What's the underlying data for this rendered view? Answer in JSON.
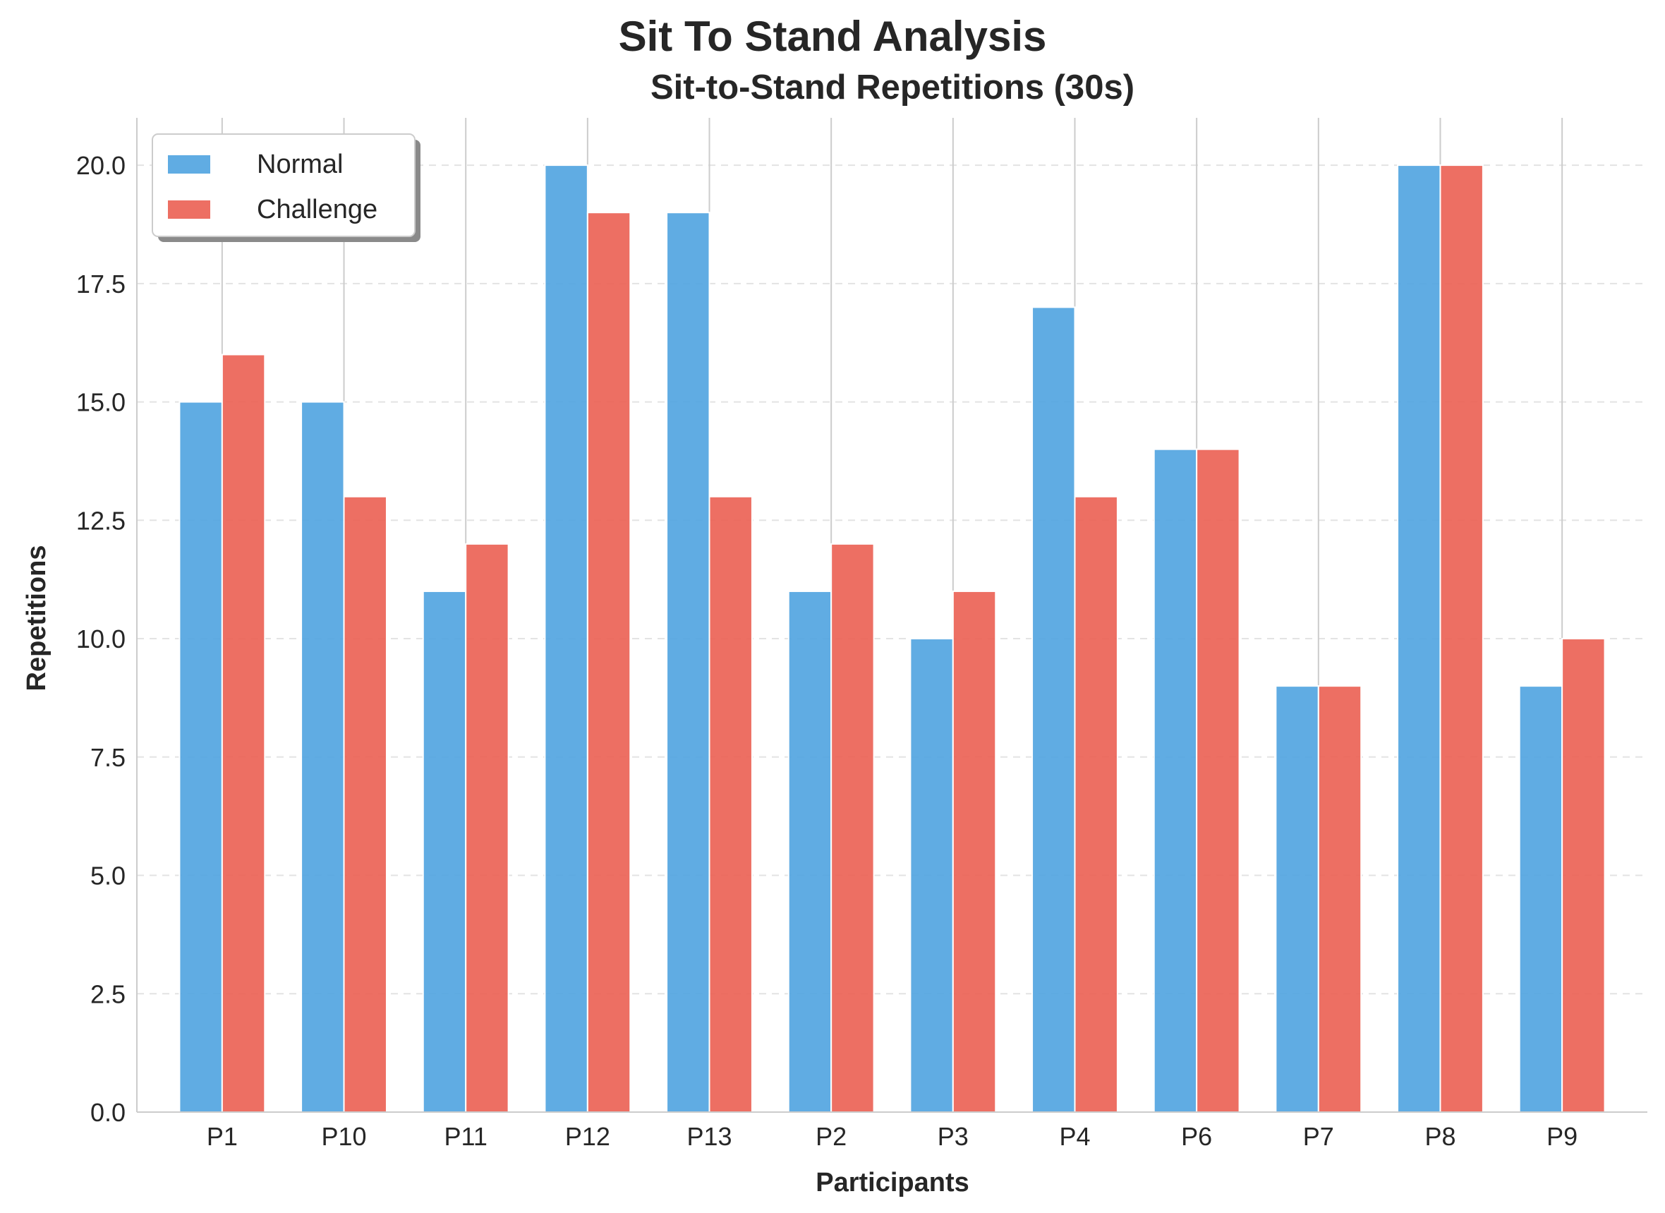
{
  "chart_data": {
    "type": "bar",
    "suptitle": "Sit To Stand Analysis",
    "title": "Sit-to-Stand Repetitions (30s)",
    "xlabel": "Participants",
    "ylabel": "Repetitions",
    "categories": [
      "P1",
      "P10",
      "P11",
      "P12",
      "P13",
      "P2",
      "P3",
      "P4",
      "P6",
      "P7",
      "P8",
      "P9"
    ],
    "series": [
      {
        "name": "Normal",
        "color": "#4fa3e0",
        "values": [
          15,
          15,
          11,
          20,
          19,
          11,
          10,
          17,
          14,
          9,
          20,
          9
        ]
      },
      {
        "name": "Challenge",
        "color": "#eb5f52",
        "values": [
          16,
          13,
          12,
          19,
          13,
          12,
          11,
          13,
          14,
          9,
          20,
          10
        ]
      }
    ],
    "ylim": [
      0,
      21
    ],
    "yticks": [
      "0.0",
      "2.5",
      "5.0",
      "7.5",
      "10.0",
      "12.5",
      "15.0",
      "17.5",
      "20.0"
    ],
    "grid": "horizontal dashed",
    "legend_position": "top-left"
  }
}
